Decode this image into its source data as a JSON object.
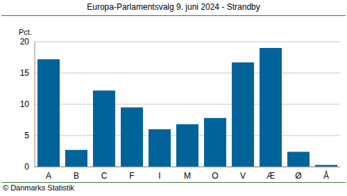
{
  "chart_data": {
    "type": "bar",
    "title": "Europa-Parlamentsvalg 9. juni 2024 - Strandby",
    "y_label": "Pct.",
    "annotation": "© Danmarks Statistik",
    "categories": [
      "A",
      "B",
      "C",
      "F",
      "I",
      "M",
      "O",
      "V",
      "Æ",
      "Ø",
      "Å"
    ],
    "values": [
      17.2,
      2.7,
      12.2,
      9.5,
      6.0,
      6.8,
      7.8,
      16.7,
      19.0,
      2.4,
      0.3
    ],
    "color": "#00649b",
    "ylim": [
      0,
      20
    ],
    "yticks": [
      0,
      5,
      10,
      15,
      20
    ],
    "grid": true
  }
}
